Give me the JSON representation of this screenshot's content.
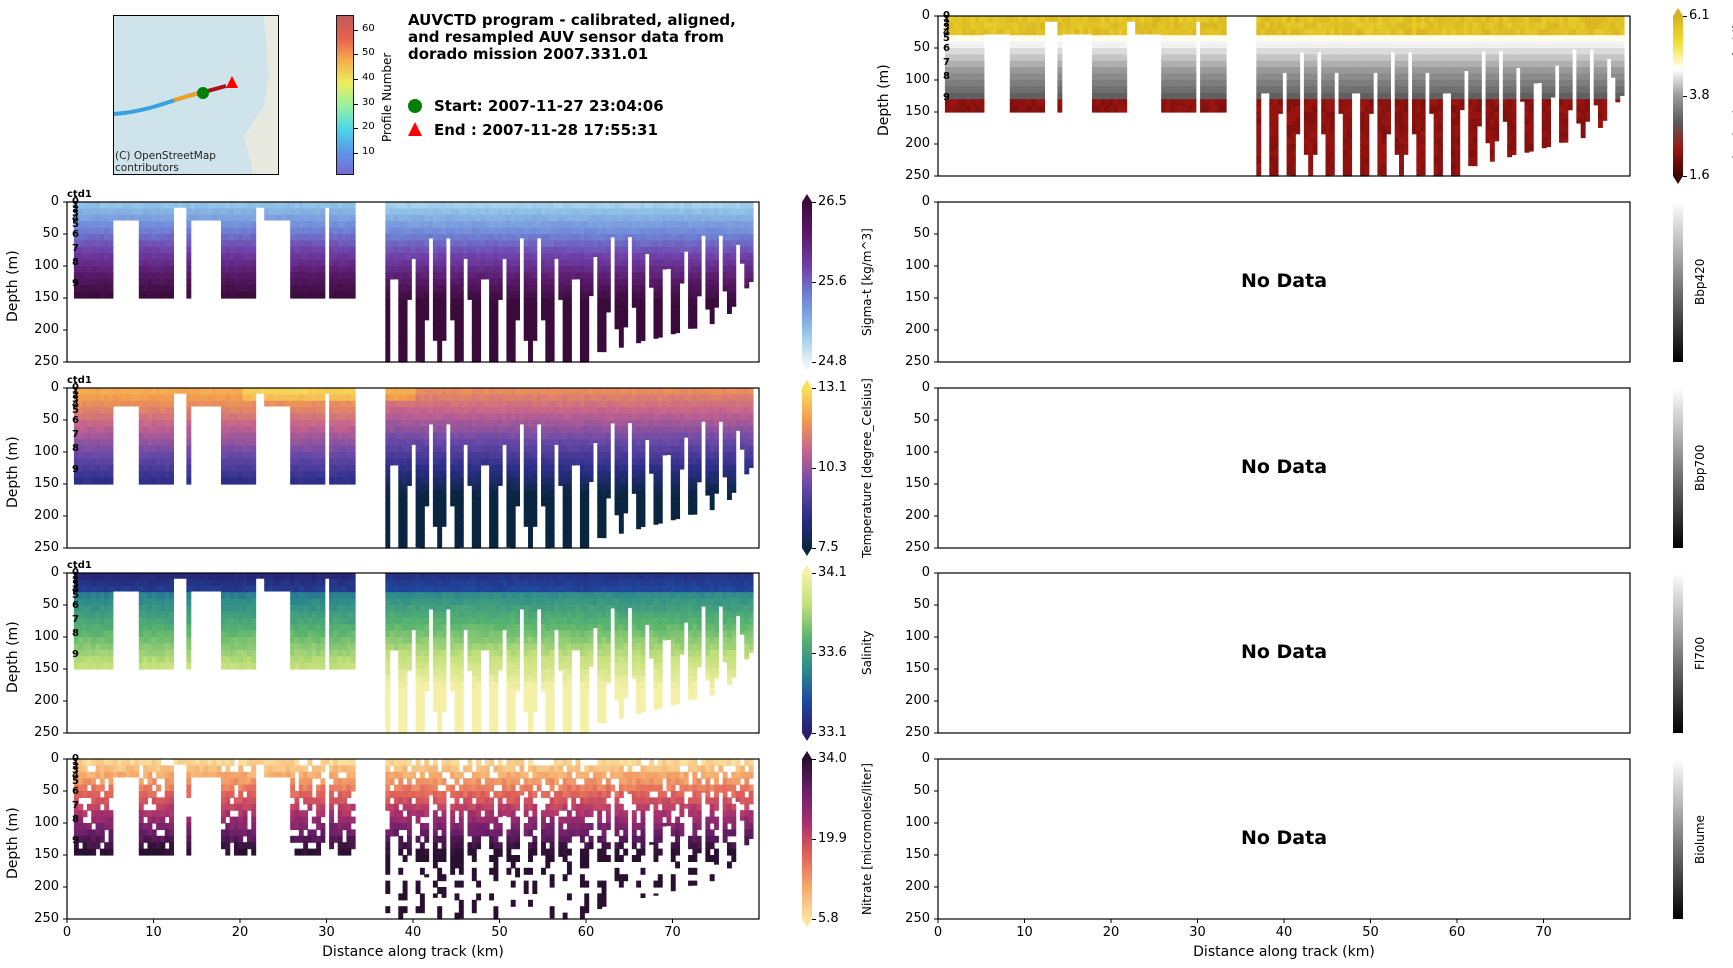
{
  "title": {
    "lines": [
      "AUVCTD program - calibrated, aligned,",
      "and resampled AUV sensor data from",
      "dorado mission 2007.331.01"
    ],
    "start_label": "Start: 2007-11-27 23:04:06",
    "end_label": "End  : 2007-11-28 17:55:31",
    "start_color": "#008000",
    "end_color": "#ff0000"
  },
  "map": {
    "credit_line1": "(C) OpenStreetMap",
    "credit_line2": "contributors",
    "colorbar_label": "Profile Number",
    "colorbar_ticks": [
      "10",
      "20",
      "30",
      "40",
      "50",
      "60"
    ]
  },
  "chart_data": [
    {
      "type": "heatmap",
      "id": "sigma_t",
      "panel_tag": "ctd1",
      "colorbar_label": "Sigma-t [kg/m^3]",
      "colorbar_ticks": [
        "26.5",
        "25.6",
        "24.8"
      ],
      "vmin": 24.8,
      "vmax": 26.5,
      "colormap": [
        "#e8f4f6",
        "#8ec1e6",
        "#6f86d8",
        "#6f3fa8",
        "#5a1a6a",
        "#3a0b3a"
      ],
      "xlabel": "",
      "ylabel": "Depth (m)",
      "xlim": [
        0,
        80
      ],
      "ylim": [
        250,
        0
      ],
      "xticks": [],
      "yticks": [
        "0",
        "50",
        "100",
        "150",
        "200",
        "250"
      ],
      "profile_labels": [
        "0",
        "1",
        "2",
        "3",
        "4",
        "5",
        "6",
        "7",
        "8",
        "9"
      ],
      "no_data": false
    },
    {
      "type": "heatmap",
      "id": "temperature",
      "panel_tag": "ctd1",
      "colorbar_label": "Temperature [degree_Celsius]",
      "colorbar_ticks": [
        "13.1",
        "10.3",
        "7.5"
      ],
      "vmin": 7.5,
      "vmax": 13.1,
      "colormap": [
        "#0a2540",
        "#2c2f8a",
        "#6b4aa8",
        "#c4628f",
        "#f39a4f",
        "#f7e25a"
      ],
      "xlabel": "",
      "ylabel": "Depth (m)",
      "xlim": [
        0,
        80
      ],
      "ylim": [
        250,
        0
      ],
      "xticks": [],
      "yticks": [
        "0",
        "50",
        "100",
        "150",
        "200",
        "250"
      ],
      "profile_labels": [
        "0",
        "1",
        "2",
        "3",
        "4",
        "5",
        "6",
        "7",
        "8",
        "9"
      ],
      "no_data": false
    },
    {
      "type": "heatmap",
      "id": "salinity",
      "panel_tag": "ctd1",
      "colorbar_label": "Salinity",
      "colorbar_ticks": [
        "34.1",
        "33.6",
        "33.1"
      ],
      "vmin": 33.1,
      "vmax": 34.1,
      "colormap": [
        "#2a1d6e",
        "#1f4aa0",
        "#2c8a8c",
        "#5ab56e",
        "#c2e07a",
        "#f5f0a8"
      ],
      "xlabel": "",
      "ylabel": "Depth (m)",
      "xlim": [
        0,
        80
      ],
      "ylim": [
        250,
        0
      ],
      "xticks": [],
      "yticks": [
        "0",
        "50",
        "100",
        "150",
        "200",
        "250"
      ],
      "profile_labels": [
        "0",
        "1",
        "2",
        "3",
        "4",
        "5",
        "6",
        "7",
        "8",
        "9"
      ],
      "no_data": false
    },
    {
      "type": "heatmap",
      "id": "nitrate",
      "panel_tag": "",
      "colorbar_label": "Nitrate [micromoles/liter]",
      "colorbar_ticks": [
        "34.0",
        "19.9",
        "5.8"
      ],
      "vmin": 5.8,
      "vmax": 34.0,
      "colormap": [
        "#fbe3a0",
        "#f5a86a",
        "#e0615a",
        "#a8306e",
        "#6a1f6a",
        "#2a1030"
      ],
      "xlabel": "Distance along track (km)",
      "ylabel": "Depth (m)",
      "xlim": [
        0,
        80
      ],
      "ylim": [
        250,
        0
      ],
      "xticks": [
        "0",
        "10",
        "20",
        "30",
        "40",
        "50",
        "60",
        "70"
      ],
      "yticks": [
        "0",
        "50",
        "100",
        "150",
        "200",
        "250"
      ],
      "profile_labels": [
        "0",
        "1",
        "2",
        "3",
        "4",
        "5",
        "6",
        "7",
        "8",
        "9"
      ],
      "no_data": false
    },
    {
      "type": "heatmap",
      "id": "dissolved_oxygen",
      "panel_tag": "",
      "colorbar_label": "Dissolved Oxygen [ml/l]",
      "colorbar_ticks": [
        "6.1",
        "3.8",
        "1.6"
      ],
      "vmin": 1.6,
      "vmax": 6.1,
      "colormap": [
        "#3a0606",
        "#9a1410",
        "#5a5a5a",
        "#9a9a9a",
        "#ffffff",
        "#f0e030",
        "#d8b020"
      ],
      "xlabel": "",
      "ylabel": "Depth (m)",
      "xlim": [
        0,
        80
      ],
      "ylim": [
        250,
        0
      ],
      "xticks": [],
      "yticks": [
        "0",
        "50",
        "100",
        "150",
        "200",
        "250"
      ],
      "profile_labels": [
        "0",
        "1",
        "2",
        "3",
        "4",
        "5",
        "6",
        "7",
        "8",
        "9"
      ],
      "no_data": false
    },
    {
      "type": "heatmap",
      "id": "bbp420",
      "panel_tag": "",
      "colorbar_label": "Bbp420",
      "colorbar_ticks": [],
      "xlabel": "",
      "ylabel": "",
      "xlim": [
        0,
        80
      ],
      "ylim": [
        250,
        0
      ],
      "xticks": [],
      "yticks": [
        "0",
        "50",
        "100",
        "150",
        "200",
        "250"
      ],
      "no_data": true,
      "no_data_text": "No Data"
    },
    {
      "type": "heatmap",
      "id": "bbp700",
      "panel_tag": "",
      "colorbar_label": "Bbp700",
      "colorbar_ticks": [],
      "xlabel": "",
      "ylabel": "",
      "xlim": [
        0,
        80
      ],
      "ylim": [
        250,
        0
      ],
      "xticks": [],
      "yticks": [
        "0",
        "50",
        "100",
        "150",
        "200",
        "250"
      ],
      "no_data": true,
      "no_data_text": "No Data"
    },
    {
      "type": "heatmap",
      "id": "fl700",
      "panel_tag": "",
      "colorbar_label": "Fl700",
      "colorbar_ticks": [],
      "xlabel": "",
      "ylabel": "",
      "xlim": [
        0,
        80
      ],
      "ylim": [
        250,
        0
      ],
      "xticks": [],
      "yticks": [
        "0",
        "50",
        "100",
        "150",
        "200",
        "250"
      ],
      "no_data": true,
      "no_data_text": "No Data"
    },
    {
      "type": "heatmap",
      "id": "biolume",
      "panel_tag": "",
      "colorbar_label": "Biolume",
      "colorbar_ticks": [],
      "xlabel": "Distance along track (km)",
      "ylabel": "",
      "xlim": [
        0,
        80
      ],
      "ylim": [
        250,
        0
      ],
      "xticks": [
        "0",
        "10",
        "20",
        "30",
        "40",
        "50",
        "60",
        "70"
      ],
      "yticks": [
        "0",
        "50",
        "100",
        "150",
        "200",
        "250"
      ],
      "no_data": true,
      "no_data_text": "No Data"
    }
  ]
}
